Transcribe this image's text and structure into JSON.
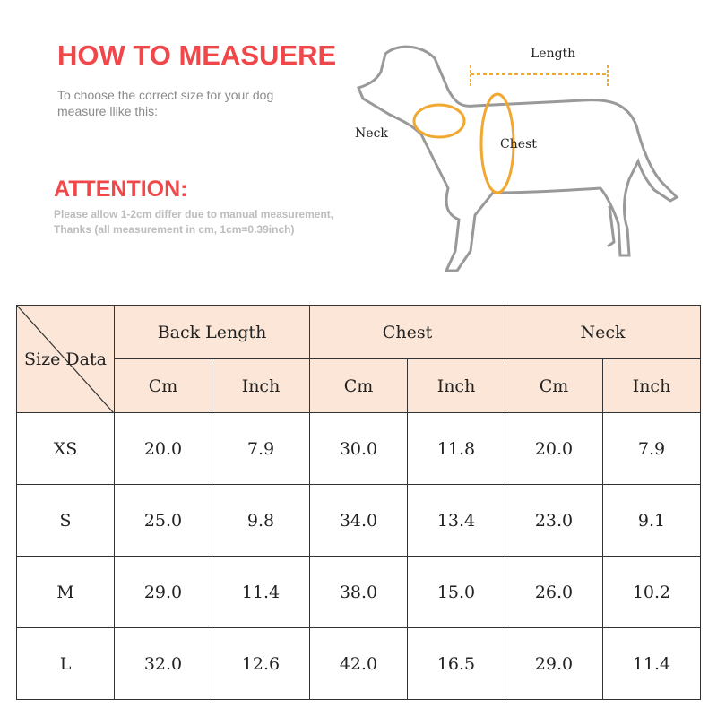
{
  "heading": "HOW TO MEASUERE",
  "subtitle": "To choose the correct size for your dog measure llike this:",
  "attention": {
    "title": "ATTENTION:",
    "line1": "Please allow 1-2cm differ due to manual measurement,",
    "line2": "Thanks (all measurement in cm, 1cm=0.39inch)"
  },
  "diagram": {
    "length": "Length",
    "neck": "Neck",
    "chest": "Chest"
  },
  "colors": {
    "accent": "#f0484a",
    "header_bg": "#fbe6d7",
    "arrow": "#f0a830"
  },
  "table": {
    "corner": "Size Data",
    "groups": [
      "Back Length",
      "Chest",
      "Neck"
    ],
    "units": [
      "Cm",
      "Inch",
      "Cm",
      "Inch",
      "Cm",
      "Inch"
    ],
    "rows": [
      [
        "XS",
        "20.0",
        "7.9",
        "30.0",
        "11.8",
        "20.0",
        "7.9"
      ],
      [
        "S",
        "25.0",
        "9.8",
        "34.0",
        "13.4",
        "23.0",
        "9.1"
      ],
      [
        "M",
        "29.0",
        "11.4",
        "38.0",
        "15.0",
        "26.0",
        "10.2"
      ],
      [
        "L",
        "32.0",
        "12.6",
        "42.0",
        "16.5",
        "29.0",
        "11.4"
      ]
    ]
  }
}
